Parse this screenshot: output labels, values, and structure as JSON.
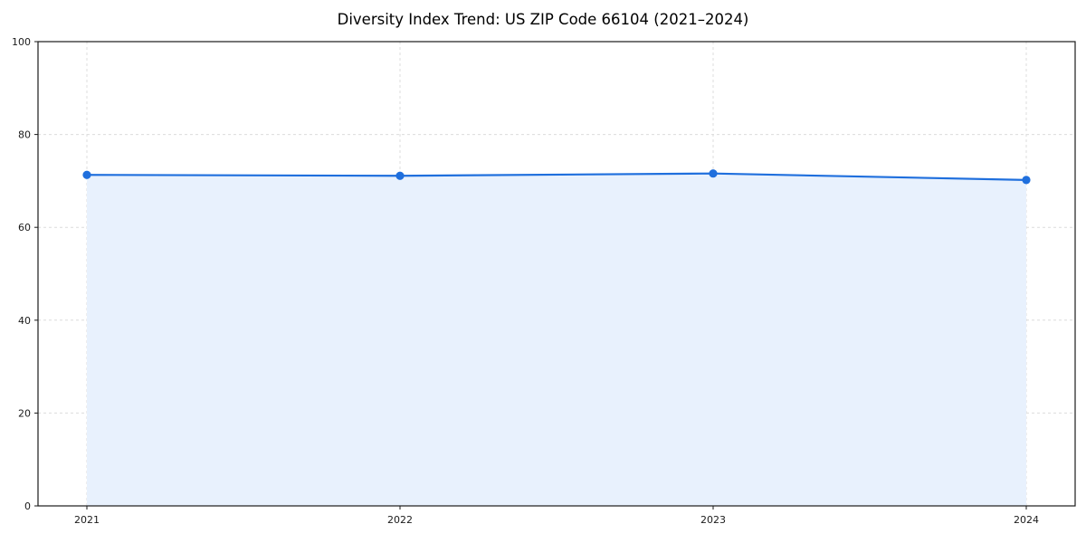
{
  "chart_data": {
    "type": "line",
    "title": "Diversity Index Trend: US ZIP Code 66104 (2021–2024)",
    "x": [
      "2021",
      "2022",
      "2023",
      "2024"
    ],
    "series": [
      {
        "name": "Diversity Index",
        "values": [
          71.3,
          71.1,
          71.6,
          70.2
        ]
      }
    ],
    "ylim": [
      0,
      100
    ],
    "yticks": [
      0,
      20,
      40,
      60,
      80,
      100
    ],
    "xlabel": "",
    "ylabel": "",
    "grid": true,
    "legend_position": "none",
    "colors": {
      "line": "#1f6fdd",
      "marker": "#1f6fdd",
      "area_fill": "#e8f1fd",
      "grid": "#dcdcdc",
      "spine": "#1a1a1a",
      "tick_label": "#1a1a1a",
      "background": "#ffffff"
    }
  }
}
